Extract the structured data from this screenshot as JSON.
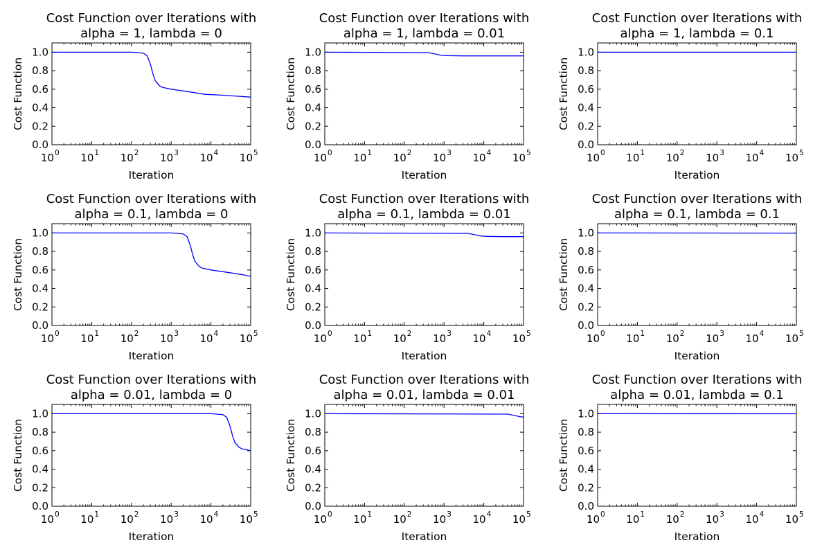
{
  "chart_data": [
    {
      "type": "line",
      "title": [
        "Cost Function over Iterations with",
        "alpha = 1, lambda = 0"
      ],
      "xlabel": "Iteration",
      "ylabel": "Cost Function",
      "xscale": "log",
      "xlim": [
        1,
        100000
      ],
      "ylim": [
        0,
        1.1
      ],
      "x_ticks": [
        "10",
        "10",
        "10",
        "10",
        "10",
        "10"
      ],
      "x_tick_exponents": [
        "0",
        "1",
        "2",
        "3",
        "4",
        "5"
      ],
      "y_ticks": [
        "0.0",
        "0.2",
        "0.4",
        "0.6",
        "0.8",
        "1.0"
      ],
      "series": [
        {
          "color": "#0000ff",
          "x": [
            1,
            100,
            200,
            250,
            300,
            350,
            400,
            500,
            600,
            1000,
            3000,
            7000,
            20000,
            100000
          ],
          "y": [
            1.0,
            1.0,
            0.99,
            0.96,
            0.87,
            0.76,
            0.69,
            0.64,
            0.62,
            0.6,
            0.57,
            0.545,
            0.535,
            0.515
          ]
        }
      ]
    },
    {
      "type": "line",
      "title": [
        "Cost Function over Iterations with",
        "alpha = 1, lambda = 0.01"
      ],
      "xlabel": "Iteration",
      "ylabel": "Cost Function",
      "xscale": "log",
      "xlim": [
        1,
        100000
      ],
      "ylim": [
        0,
        1.1
      ],
      "x_ticks": [
        "10",
        "10",
        "10",
        "10",
        "10",
        "10"
      ],
      "x_tick_exponents": [
        "0",
        "1",
        "2",
        "3",
        "4",
        "5"
      ],
      "y_ticks": [
        "0.0",
        "0.2",
        "0.4",
        "0.6",
        "0.8",
        "1.0"
      ],
      "series": [
        {
          "color": "#0000ff",
          "x": [
            1,
            400,
            600,
            800,
            1200,
            3000,
            100000
          ],
          "y": [
            1.0,
            0.995,
            0.98,
            0.968,
            0.963,
            0.96,
            0.96
          ]
        }
      ]
    },
    {
      "type": "line",
      "title": [
        "Cost Function over Iterations with",
        "alpha = 1, lambda = 0.1"
      ],
      "xlabel": "Iteration",
      "ylabel": "Cost Function",
      "xscale": "log",
      "xlim": [
        1,
        100000
      ],
      "ylim": [
        0,
        1.1
      ],
      "x_ticks": [
        "10",
        "10",
        "10",
        "10",
        "10",
        "10"
      ],
      "x_tick_exponents": [
        "0",
        "1",
        "2",
        "3",
        "4",
        "5"
      ],
      "y_ticks": [
        "0.0",
        "0.2",
        "0.4",
        "0.6",
        "0.8",
        "1.0"
      ],
      "series": [
        {
          "color": "#0000ff",
          "x": [
            1,
            100000
          ],
          "y": [
            1.0,
            1.0
          ]
        }
      ]
    },
    {
      "type": "line",
      "title": [
        "Cost Function over Iterations with",
        "alpha = 0.1, lambda = 0"
      ],
      "xlabel": "Iteration",
      "ylabel": "Cost Function",
      "xscale": "log",
      "xlim": [
        1,
        100000
      ],
      "ylim": [
        0,
        1.1
      ],
      "x_ticks": [
        "10",
        "10",
        "10",
        "10",
        "10",
        "10"
      ],
      "x_tick_exponents": [
        "0",
        "1",
        "2",
        "3",
        "4",
        "5"
      ],
      "y_ticks": [
        "0.0",
        "0.2",
        "0.4",
        "0.6",
        "0.8",
        "1.0"
      ],
      "series": [
        {
          "color": "#0000ff",
          "x": [
            1,
            1000,
            2000,
            2500,
            3000,
            3500,
            4000,
            5000,
            6000,
            10000,
            30000,
            70000,
            100000
          ],
          "y": [
            1.0,
            1.0,
            0.99,
            0.96,
            0.87,
            0.76,
            0.69,
            0.64,
            0.62,
            0.6,
            0.57,
            0.545,
            0.53
          ]
        }
      ]
    },
    {
      "type": "line",
      "title": [
        "Cost Function over Iterations with",
        "alpha = 0.1, lambda = 0.01"
      ],
      "xlabel": "Iteration",
      "ylabel": "Cost Function",
      "xscale": "log",
      "xlim": [
        1,
        100000
      ],
      "ylim": [
        0,
        1.1
      ],
      "x_ticks": [
        "10",
        "10",
        "10",
        "10",
        "10",
        "10"
      ],
      "x_tick_exponents": [
        "0",
        "1",
        "2",
        "3",
        "4",
        "5"
      ],
      "y_ticks": [
        "0.0",
        "0.2",
        "0.4",
        "0.6",
        "0.8",
        "1.0"
      ],
      "series": [
        {
          "color": "#0000ff",
          "x": [
            1,
            4000,
            6000,
            8000,
            12000,
            30000,
            100000
          ],
          "y": [
            1.0,
            0.995,
            0.98,
            0.968,
            0.963,
            0.96,
            0.96
          ]
        }
      ]
    },
    {
      "type": "line",
      "title": [
        "Cost Function over Iterations with",
        "alpha = 0.1, lambda = 0.1"
      ],
      "xlabel": "Iteration",
      "ylabel": "Cost Function",
      "xscale": "log",
      "xlim": [
        1,
        100000
      ],
      "ylim": [
        0,
        1.1
      ],
      "x_ticks": [
        "10",
        "10",
        "10",
        "10",
        "10",
        "10"
      ],
      "x_tick_exponents": [
        "0",
        "1",
        "2",
        "3",
        "4",
        "5"
      ],
      "y_ticks": [
        "0.0",
        "0.2",
        "0.4",
        "0.6",
        "0.8",
        "1.0"
      ],
      "series": [
        {
          "color": "#0000ff",
          "x": [
            1,
            100000
          ],
          "y": [
            1.0,
            0.998
          ]
        }
      ]
    },
    {
      "type": "line",
      "title": [
        "Cost Function over Iterations with",
        "alpha = 0.01, lambda = 0"
      ],
      "xlabel": "Iteration",
      "ylabel": "Cost Function",
      "xscale": "log",
      "xlim": [
        1,
        100000
      ],
      "ylim": [
        0,
        1.1
      ],
      "x_ticks": [
        "10",
        "10",
        "10",
        "10",
        "10",
        "10"
      ],
      "x_tick_exponents": [
        "0",
        "1",
        "2",
        "3",
        "4",
        "5"
      ],
      "y_ticks": [
        "0.0",
        "0.2",
        "0.4",
        "0.6",
        "0.8",
        "1.0"
      ],
      "series": [
        {
          "color": "#0000ff",
          "x": [
            1,
            10000,
            20000,
            25000,
            30000,
            35000,
            40000,
            50000,
            60000,
            80000,
            100000
          ],
          "y": [
            1.0,
            1.0,
            0.99,
            0.96,
            0.87,
            0.76,
            0.69,
            0.64,
            0.62,
            0.61,
            0.6
          ]
        }
      ]
    },
    {
      "type": "line",
      "title": [
        "Cost Function over Iterations with",
        "alpha = 0.01, lambda = 0.01"
      ],
      "xlabel": "Iteration",
      "ylabel": "Cost Function",
      "xscale": "log",
      "xlim": [
        1,
        100000
      ],
      "ylim": [
        0,
        1.1
      ],
      "x_ticks": [
        "10",
        "10",
        "10",
        "10",
        "10",
        "10"
      ],
      "x_tick_exponents": [
        "0",
        "1",
        "2",
        "3",
        "4",
        "5"
      ],
      "y_ticks": [
        "0.0",
        "0.2",
        "0.4",
        "0.6",
        "0.8",
        "1.0"
      ],
      "series": [
        {
          "color": "#0000ff",
          "x": [
            1,
            40000,
            60000,
            80000,
            100000
          ],
          "y": [
            1.0,
            0.995,
            0.98,
            0.968,
            0.963
          ]
        }
      ]
    },
    {
      "type": "line",
      "title": [
        "Cost Function over Iterations with",
        "alpha = 0.01, lambda = 0.1"
      ],
      "xlabel": "Iteration",
      "ylabel": "Cost Function",
      "xscale": "log",
      "xlim": [
        1,
        100000
      ],
      "ylim": [
        0,
        1.1
      ],
      "x_ticks": [
        "10",
        "10",
        "10",
        "10",
        "10",
        "10"
      ],
      "x_tick_exponents": [
        "0",
        "1",
        "2",
        "3",
        "4",
        "5"
      ],
      "y_ticks": [
        "0.0",
        "0.2",
        "0.4",
        "0.6",
        "0.8",
        "1.0"
      ],
      "series": [
        {
          "color": "#0000ff",
          "x": [
            1,
            100000
          ],
          "y": [
            1.0,
            0.999
          ]
        }
      ]
    }
  ]
}
